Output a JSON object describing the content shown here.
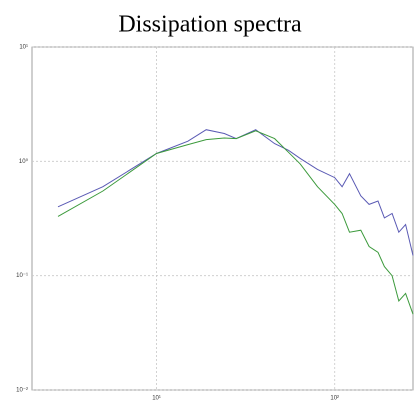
{
  "chart_data": {
    "type": "line",
    "title": "Dissipation spectra",
    "x": [
      2.8,
      5,
      10,
      15,
      19,
      24,
      28,
      36,
      46,
      55,
      64,
      80,
      100,
      110,
      121,
      140,
      156,
      175,
      190,
      210,
      229,
      250,
      275
    ],
    "series": [
      {
        "color": "#5a5ab4",
        "values": [
          0.4,
          0.6,
          1.17,
          1.5,
          1.89,
          1.75,
          1.58,
          1.89,
          1.43,
          1.25,
          1.06,
          0.85,
          0.72,
          0.6,
          0.78,
          0.5,
          0.42,
          0.45,
          0.32,
          0.35,
          0.24,
          0.28,
          0.15
        ]
      },
      {
        "color": "#3c9a3c",
        "values": [
          0.33,
          0.55,
          1.17,
          1.4,
          1.55,
          1.6,
          1.58,
          1.85,
          1.58,
          1.2,
          0.95,
          0.6,
          0.42,
          0.35,
          0.24,
          0.25,
          0.18,
          0.16,
          0.12,
          0.1,
          0.06,
          0.07,
          0.046
        ]
      }
    ],
    "xlim": [
      2,
      275
    ],
    "ylim": [
      0.01,
      10
    ],
    "xscale": "log",
    "yscale": "log",
    "grid": true,
    "xticks": [
      {
        "value": 10,
        "label": "10¹"
      },
      {
        "value": 100,
        "label": "10²"
      }
    ],
    "yticks": [
      {
        "value": 0.01,
        "label": "10⁻²"
      },
      {
        "value": 0.1,
        "label": "10⁻¹"
      },
      {
        "value": 1,
        "label": "10⁰"
      },
      {
        "value": 10,
        "label": "10¹"
      }
    ]
  }
}
